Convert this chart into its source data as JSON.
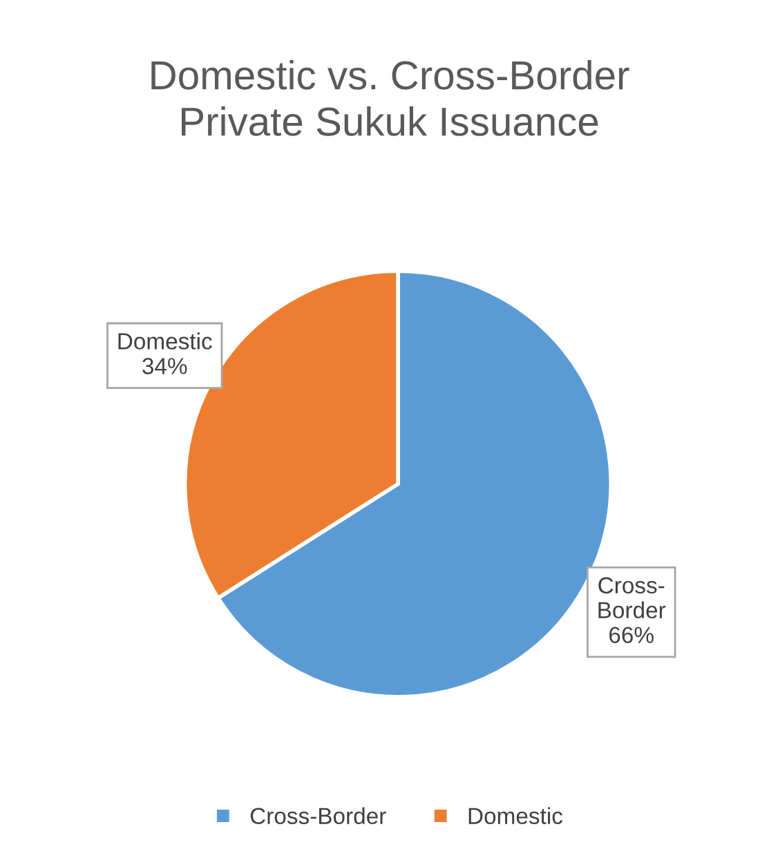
{
  "chart_data": {
    "type": "pie",
    "title": "Domestic vs. Cross-Border\nPrivate Sukuk Issuance",
    "categories": [
      "Cross-Border",
      "Domestic"
    ],
    "values": [
      66,
      34
    ],
    "colors": [
      "#5b9bd5",
      "#ed7d31"
    ],
    "value_labels": [
      "Cross-\nBorder\n66%",
      "Domestic\n34%"
    ],
    "legend": "bottom"
  }
}
